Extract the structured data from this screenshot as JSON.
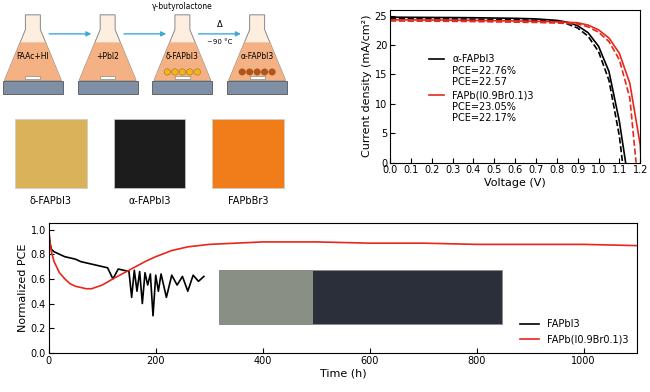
{
  "diagram": {
    "steps": [
      {
        "flask": "FAAc+HI"
      },
      {
        "flask": "+PbI2"
      },
      {
        "flask": "δ-FAPbI3",
        "added": "γ-butyrolactone"
      },
      {
        "flask": "α-FAPbI3",
        "arrow": [
          "Δ",
          "~90 °C"
        ]
      }
    ],
    "photos": [
      "δ-FAPbI3",
      "α-FAPbI3",
      "FAPbBr3"
    ]
  },
  "chart_data": [
    {
      "type": "line",
      "x_label": "Voltage (V)",
      "y_label": "Current density (mA/cm²)",
      "xlim": [
        0,
        1.2
      ],
      "xticks": [
        {
          "value": 0,
          "label": "0.0"
        },
        0.1,
        0.2,
        0.3,
        0.4,
        0.5,
        0.6,
        0.7,
        0.8,
        0.9,
        {
          "value": 1,
          "label": "1.0"
        },
        1.1,
        1.2
      ],
      "ylim": [
        0,
        26
      ],
      "yticks": [
        0,
        5,
        10,
        15,
        20,
        25
      ],
      "legend": "center left",
      "series": [
        {
          "name": "α-FAPbI3",
          "color": "#000000",
          "line_style": "solid",
          "annotations": [
            "PCE=22.76%",
            "PCE=22.57"
          ],
          "x": [
            0,
            0.1,
            0.2,
            0.3,
            0.4,
            0.5,
            0.6,
            0.7,
            0.8,
            0.85,
            0.9,
            0.95,
            1.0,
            1.05,
            1.1,
            1.13
          ],
          "values": [
            24.75,
            24.72,
            24.7,
            24.68,
            24.65,
            24.6,
            24.55,
            24.45,
            24.2,
            23.9,
            23.3,
            22.1,
            19.8,
            15.5,
            7.0,
            0
          ]
        },
        {
          "color": "#000000",
          "line_style": "dashed",
          "x": [
            0,
            0.1,
            0.2,
            0.3,
            0.4,
            0.5,
            0.6,
            0.7,
            0.8,
            0.85,
            0.9,
            0.95,
            1.0,
            1.05,
            1.1,
            1.115
          ],
          "values": [
            24.5,
            24.48,
            24.46,
            24.44,
            24.4,
            24.35,
            24.3,
            24.2,
            24.0,
            23.6,
            22.9,
            21.5,
            18.9,
            14.0,
            4.5,
            0
          ]
        },
        {
          "name": "FAPb(I0.9Br0.1)3",
          "color": "#e8261c",
          "line_style": "solid",
          "annotations": [
            "PCE=23.05%",
            "PCE=22.17%"
          ],
          "x": [
            0,
            0.1,
            0.2,
            0.3,
            0.4,
            0.5,
            0.6,
            0.7,
            0.8,
            0.9,
            0.95,
            1.0,
            1.05,
            1.1,
            1.15,
            1.2,
            1.205
          ],
          "values": [
            24.3,
            24.28,
            24.26,
            24.24,
            24.2,
            24.15,
            24.1,
            24.05,
            23.95,
            23.8,
            23.4,
            22.6,
            21.2,
            18.6,
            13.5,
            3.0,
            0
          ]
        },
        {
          "color": "#e8261c",
          "line_style": "dashed",
          "x": [
            0,
            0.1,
            0.2,
            0.3,
            0.4,
            0.5,
            0.6,
            0.7,
            0.8,
            0.9,
            0.95,
            1.0,
            1.05,
            1.1,
            1.15,
            1.18
          ],
          "values": [
            24.1,
            24.08,
            24.06,
            24.04,
            24.0,
            23.95,
            23.9,
            23.85,
            23.75,
            23.6,
            23.1,
            22.2,
            20.6,
            17.5,
            11.0,
            0
          ]
        }
      ]
    },
    {
      "type": "line",
      "x_label": "Time (h)",
      "y_label": "Normalized PCE",
      "xlim": [
        0,
        1100
      ],
      "xticks": [
        0,
        200,
        400,
        600,
        800,
        1000
      ],
      "ylim": [
        0,
        1.05
      ],
      "yticks": [
        {
          "value": 0,
          "label": "0.0"
        },
        0.2,
        0.4,
        0.6,
        0.8,
        {
          "value": 1,
          "label": "1.0"
        }
      ],
      "legend": "lower right",
      "series": [
        {
          "name": "FAPbI3",
          "color": "#000000",
          "x": [
            0,
            2,
            5,
            10,
            20,
            30,
            40,
            50,
            60,
            70,
            80,
            90,
            100,
            110,
            120,
            130,
            140,
            150,
            155,
            160,
            165,
            170,
            175,
            180,
            185,
            190,
            195,
            200,
            205,
            210,
            220,
            230,
            240,
            250,
            260,
            270,
            280,
            290
          ],
          "values": [
            1.0,
            0.9,
            0.84,
            0.82,
            0.8,
            0.78,
            0.77,
            0.76,
            0.74,
            0.73,
            0.72,
            0.71,
            0.7,
            0.69,
            0.6,
            0.68,
            0.67,
            0.66,
            0.45,
            0.67,
            0.5,
            0.66,
            0.4,
            0.65,
            0.55,
            0.64,
            0.3,
            0.63,
            0.5,
            0.64,
            0.45,
            0.63,
            0.55,
            0.62,
            0.5,
            0.63,
            0.58,
            0.62
          ]
        },
        {
          "name": "FAPb(I0.9Br0.1)3",
          "color": "#e8261c",
          "x": [
            0,
            2,
            5,
            10,
            20,
            30,
            40,
            50,
            60,
            70,
            80,
            100,
            120,
            150,
            180,
            200,
            230,
            260,
            300,
            350,
            400,
            500,
            600,
            700,
            800,
            900,
            1000,
            1100
          ],
          "values": [
            1.0,
            0.9,
            0.82,
            0.74,
            0.65,
            0.6,
            0.56,
            0.54,
            0.53,
            0.52,
            0.52,
            0.55,
            0.6,
            0.67,
            0.74,
            0.78,
            0.83,
            0.86,
            0.88,
            0.89,
            0.9,
            0.9,
            0.89,
            0.89,
            0.88,
            0.88,
            0.88,
            0.87
          ]
        }
      ]
    }
  ]
}
